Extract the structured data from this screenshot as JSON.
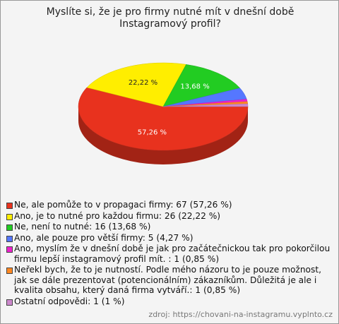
{
  "chart_data": {
    "type": "pie",
    "title": "Myslíte si, že je pro firmy nutné mít v dnešní době Instagramový profil?",
    "categories": [
      "Ne, ale pomůže to v propagaci firmy: 67 (57,26 %)",
      "Ano, je to nutné pro každou firmu: 26 (22,22 %)",
      "Ne, není to nutné: 16 (13,68 %)",
      "Ano, ale pouze pro větší firmy: 5 (4,27 %)",
      "Ano, myslím že v dnešní době je jak pro začátečnickou tak pro pokorčilou firmu lepší instagramový profil mít. : 1 (0,85 %)",
      "Neřekl bych, že to je nutností. Podle mého názoru to je pouze možnost, jak se dále prezentovat (potencionálním) zákazníkům. Důležitá je ale i kvalita obsahu, který daná firma vytváří.: 1 (0,85 %)",
      "Ostatní odpovědi: 1 (1 %)"
    ],
    "values": [
      57.26,
      22.22,
      13.68,
      4.27,
      0.85,
      0.85,
      1
    ],
    "value_labels": [
      "57,26 %",
      "22,22 %",
      "13,68 %",
      null,
      null,
      null,
      null
    ],
    "colors": [
      "#e8321e",
      "#ffee00",
      "#22cc22",
      "#5577ff",
      "#ee22cc",
      "#ff8822",
      "#cc88cc"
    ],
    "source": "zdroj: https://chovani-na-instagramu.vyplnto.cz"
  }
}
